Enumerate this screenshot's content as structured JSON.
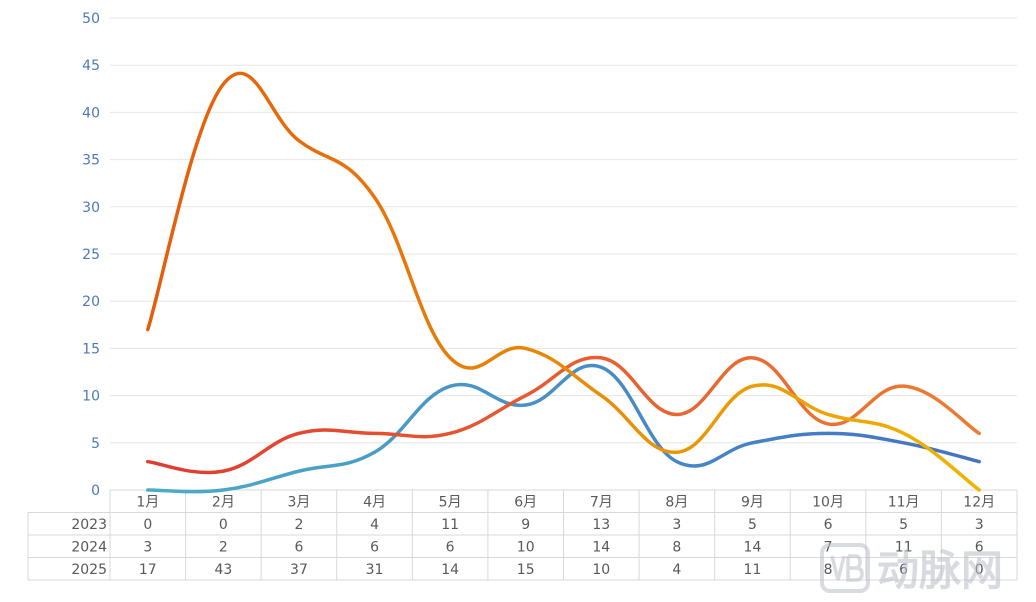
{
  "chart_data": {
    "type": "line",
    "categories": [
      "1月",
      "2月",
      "3月",
      "4月",
      "5月",
      "6月",
      "7月",
      "8月",
      "9月",
      "10月",
      "11月",
      "12月"
    ],
    "series": [
      {
        "name": "2023",
        "values": [
          0,
          0,
          2,
          4,
          11,
          9,
          13,
          3,
          5,
          6,
          5,
          3
        ],
        "colors": [
          "#4bacc6",
          "#4472c4"
        ]
      },
      {
        "name": "2024",
        "values": [
          3,
          2,
          6,
          6,
          6,
          10,
          14,
          8,
          14,
          7,
          11,
          6
        ],
        "colors": [
          "#e03c31",
          "#ed7d31"
        ]
      },
      {
        "name": "2025",
        "values": [
          17,
          43,
          37,
          31,
          14,
          15,
          10,
          4,
          11,
          8,
          6,
          0
        ],
        "colors": [
          "#e35d0c",
          "#f0b400"
        ]
      }
    ],
    "ylim": [
      0,
      50
    ],
    "yticks": [
      0,
      5,
      10,
      15,
      20,
      25,
      30,
      35,
      40,
      45,
      50
    ],
    "grid": true,
    "legend": "data-table-left",
    "data_table": true
  },
  "watermark": {
    "text": "动脉网",
    "logo": "vb-logo-icon"
  }
}
